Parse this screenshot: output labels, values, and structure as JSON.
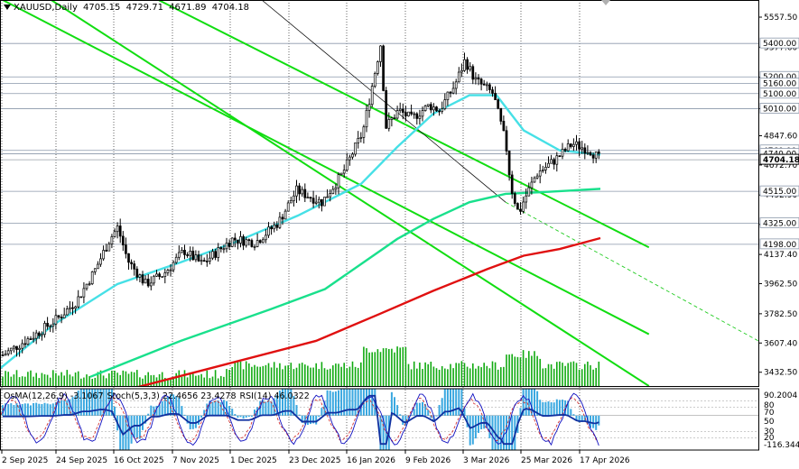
{
  "symbol": {
    "name": "XAUUSD,Daily",
    "open": "4705.15",
    "high": "4729.71",
    "low": "4671.89",
    "close": "4704.18"
  },
  "indicators_header": {
    "osma": "OsMA(12,26,9) -3.1067",
    "stoch": "Stoch(5,3,3) 22.4656 23.4278",
    "rsi": "RSI(14) 46.0322"
  },
  "price_axis": {
    "ticks": [
      "5557.50",
      "5377.60",
      "5197.70",
      "5010.00",
      "4847.60",
      "4672.70",
      "4492.90",
      "4317.00",
      "4137.40",
      "3962.50",
      "3782.50",
      "3607.40",
      "3432.50"
    ],
    "current_price": "4704.18",
    "level_labels": [
      "5400.00",
      "5200.00",
      "5160.00",
      "5100.00",
      "5010.00",
      "4760.00",
      "4740.00",
      "4515.00",
      "4325.00",
      "4198.00"
    ]
  },
  "indicator_axis": {
    "ticks": [
      "90.2004",
      "80",
      "70",
      "50",
      "30",
      "20",
      "-116.3446"
    ]
  },
  "time_axis": {
    "labels": [
      "2 Sep 2025",
      "24 Sep 2025",
      "16 Oct 2025",
      "7 Nov 2025",
      "1 Dec 2025",
      "23 Dec 2025",
      "16 Jan 2026",
      "9 Feb 2026",
      "3 Mar 2026",
      "25 Mar 2026",
      "17 Apr 2026"
    ]
  },
  "colors": {
    "candle": "#000000",
    "grid": "#000000",
    "ema50": "#46e0e6",
    "ema100": "#19e08c",
    "ema200": "#e01010",
    "channel": "#11dd11",
    "volume": "#11aa11",
    "osma_hist": "#3aa8e0",
    "stoch_main": "#1010c0",
    "stoch_signal": "#d02020"
  },
  "chart_data": {
    "type": "candlestick",
    "title": "XAUUSD,Daily",
    "ylim": [
      3350,
      5660
    ],
    "x_range": [
      "2 Sep 2025",
      "24 Apr 2026"
    ],
    "close_path": [
      [
        "2 Sep 2025",
        3535
      ],
      [
        "15 Sep 2025",
        3660
      ],
      [
        "24 Sep 2025",
        3760
      ],
      [
        "1 Oct 2025",
        3860
      ],
      [
        "8 Oct 2025",
        4040
      ],
      [
        "14 Oct 2025",
        4230
      ],
      [
        "17 Oct 2025",
        4300
      ],
      [
        "21 Oct 2025",
        4100
      ],
      [
        "28 Oct 2025",
        3960
      ],
      [
        "4 Nov 2025",
        4020
      ],
      [
        "12 Nov 2025",
        4160
      ],
      [
        "19 Nov 2025",
        4080
      ],
      [
        "1 Dec 2025",
        4230
      ],
      [
        "10 Dec 2025",
        4210
      ],
      [
        "19 Dec 2025",
        4330
      ],
      [
        "26 Dec 2025",
        4520
      ],
      [
        "5 Jan 2026",
        4450
      ],
      [
        "13 Jan 2026",
        4620
      ],
      [
        "21 Jan 2026",
        4870
      ],
      [
        "28 Jan 2026",
        5400
      ],
      [
        "30 Jan 2026",
        4900
      ],
      [
        "4 Feb 2026",
        5000
      ],
      [
        "9 Feb 2026",
        4950
      ],
      [
        "16 Feb 2026",
        5030
      ],
      [
        "20 Feb 2026",
        5000
      ],
      [
        "26 Feb 2026",
        5150
      ],
      [
        "2 Mar 2026",
        5300
      ],
      [
        "6 Mar 2026",
        5180
      ],
      [
        "13 Mar 2026",
        5100
      ],
      [
        "18 Mar 2026",
        4800
      ],
      [
        "20 Mar 2026",
        4540
      ],
      [
        "23 Mar 2026",
        4380
      ],
      [
        "25 Mar 2026",
        4460
      ],
      [
        "30 Mar 2026",
        4620
      ],
      [
        "6 Apr 2026",
        4700
      ],
      [
        "13 Apr 2026",
        4800
      ],
      [
        "20 Apr 2026",
        4760
      ],
      [
        "24 Apr 2026",
        4704
      ]
    ],
    "ema50": [
      [
        0,
        3455
      ],
      [
        60,
        3720
      ],
      [
        130,
        3960
      ],
      [
        200,
        4090
      ],
      [
        260,
        4210
      ],
      [
        330,
        4370
      ],
      [
        400,
        4560
      ],
      [
        440,
        4780
      ],
      [
        480,
        4980
      ],
      [
        520,
        5090
      ],
      [
        550,
        5090
      ],
      [
        580,
        4880
      ],
      [
        620,
        4760
      ],
      [
        665,
        4735
      ]
    ],
    "ema100": [
      [
        100,
        3405
      ],
      [
        200,
        3620
      ],
      [
        300,
        3810
      ],
      [
        360,
        3930
      ],
      [
        400,
        4080
      ],
      [
        440,
        4230
      ],
      [
        480,
        4350
      ],
      [
        520,
        4450
      ],
      [
        560,
        4500
      ],
      [
        600,
        4510
      ],
      [
        665,
        4530
      ]
    ],
    "ema200": [
      [
        150,
        3340
      ],
      [
        250,
        3480
      ],
      [
        350,
        3620
      ],
      [
        420,
        3780
      ],
      [
        480,
        3920
      ],
      [
        540,
        4050
      ],
      [
        580,
        4130
      ],
      [
        620,
        4170
      ],
      [
        665,
        4235
      ]
    ],
    "horizontal_levels": [
      5400,
      5200,
      5160,
      5100,
      5010,
      4760,
      4740,
      4515,
      4325,
      4198
    ],
    "channel_lines": [
      {
        "from": [
          "21 Sep 2025",
          5660
        ],
        "to": [
          "13 May 2026",
          3350
        ]
      },
      {
        "from": [
          "2 Sep 2025",
          5660
        ],
        "to": [
          "13 May 2026",
          3660
        ]
      },
      {
        "from": [
          "2 Nov 2025",
          5660
        ],
        "to": [
          "13 May 2026",
          4180
        ]
      }
    ],
    "osma_range": [
      -116.3446,
      90.2004
    ]
  }
}
